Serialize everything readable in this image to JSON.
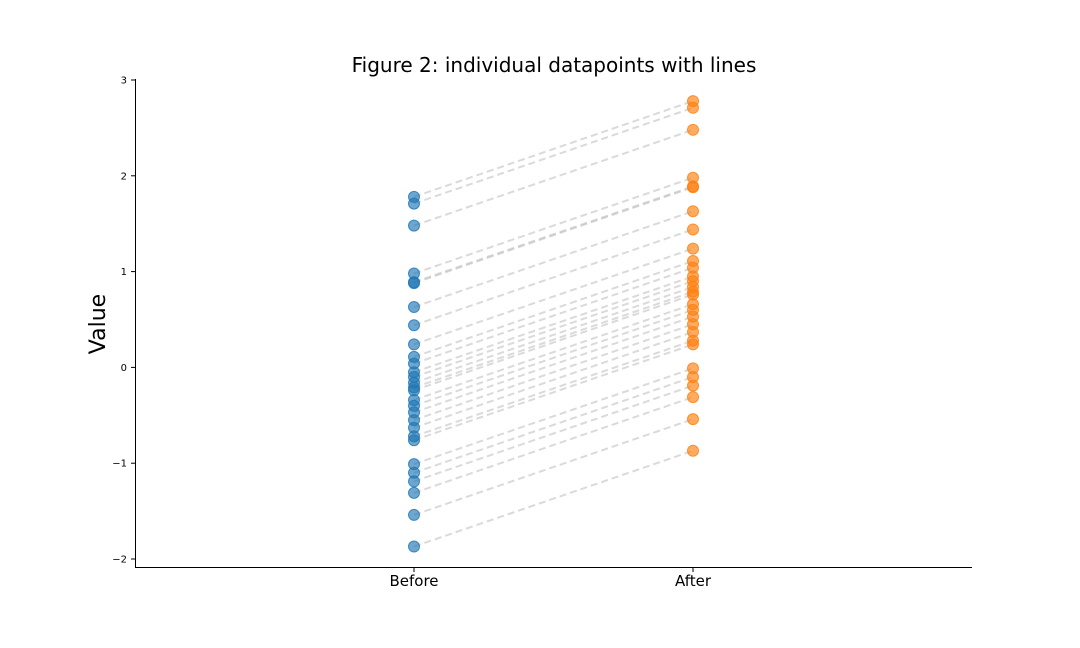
{
  "chart_data": {
    "type": "scatter",
    "title": "Figure 2: individual datapoints with lines",
    "ylabel": "Value",
    "xlabel": "",
    "categories": [
      "Before",
      "After"
    ],
    "ylim": [
      -2.1,
      3.0
    ],
    "yticks": [
      -2,
      -1,
      0,
      1,
      2,
      3
    ],
    "ytick_labels": [
      "−2",
      "−1",
      "0",
      "1",
      "2",
      "3"
    ],
    "colors": {
      "before": "#1f77b4",
      "after": "#ff7f0e",
      "line": "#bbbbbb",
      "axis": "#000000"
    },
    "grid": false,
    "series": [
      {
        "values": [
          1.78,
          1.71,
          1.48,
          0.98,
          0.89,
          0.88,
          0.63,
          0.44,
          0.24,
          0.11,
          0.04,
          -0.05,
          -0.1,
          -0.16,
          -0.21,
          -0.24,
          -0.34,
          -0.4,
          -0.47,
          -0.55,
          -0.63,
          -0.72,
          -0.76,
          -1.01,
          -1.1,
          -1.19,
          -1.31,
          -1.54,
          -1.87
        ]
      },
      {
        "values": [
          2.78,
          2.71,
          2.48,
          1.98,
          1.89,
          1.88,
          1.63,
          1.44,
          1.24,
          1.11,
          1.04,
          0.95,
          0.9,
          0.84,
          0.79,
          0.76,
          0.66,
          0.6,
          0.53,
          0.45,
          0.37,
          0.28,
          0.24,
          -0.01,
          -0.1,
          -0.19,
          -0.31,
          -0.54,
          -0.87
        ]
      }
    ]
  }
}
